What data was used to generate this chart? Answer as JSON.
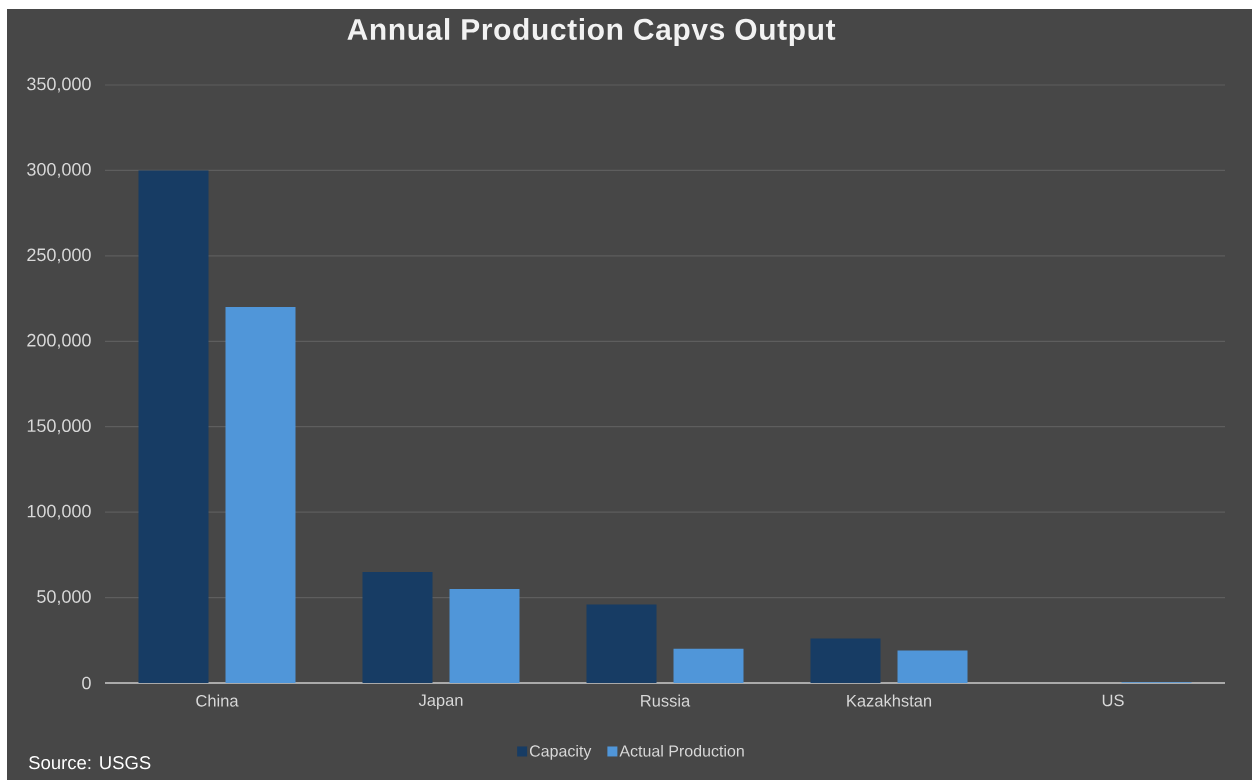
{
  "chart_data": {
    "type": "bar",
    "title": "Annual Production Capvs Output",
    "categories": [
      "China",
      "Japan",
      "Russia",
      "Kazakhstan",
      "US"
    ],
    "series": [
      {
        "name": "Capacity",
        "color": "#173c64",
        "values": [
          300000,
          65000,
          46000,
          26000,
          0
        ]
      },
      {
        "name": "Actual Production",
        "color": "#5096d9",
        "values": [
          220000,
          55000,
          20000,
          19000,
          500
        ]
      }
    ],
    "ylim": [
      0,
      350000
    ],
    "yticks": [
      0,
      {
        "value": 50000,
        "label": "50,000"
      },
      {
        "value": 100000,
        "label": "100,000"
      },
      {
        "value": 150000,
        "label": "150,000"
      },
      {
        "value": 200000,
        "label": "200,000"
      },
      {
        "value": 250000,
        "label": "250,000"
      },
      {
        "value": 300000,
        "label": "300,000"
      },
      {
        "value": 350000,
        "label": "350,000"
      }
    ],
    "grid": "y",
    "legend": "bottom",
    "annotations": [
      "Source: USGS"
    ]
  }
}
